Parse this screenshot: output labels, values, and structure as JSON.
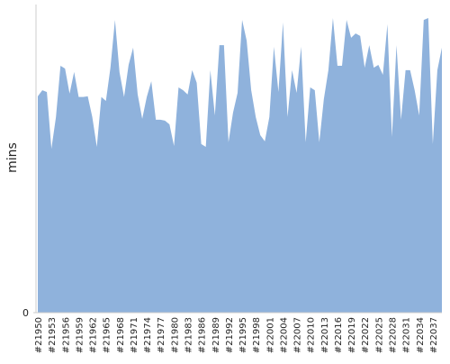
{
  "chart_data": {
    "type": "area",
    "y_label": "mins",
    "color": "#8fb2dc",
    "categories": [
      "#21950",
      null,
      null,
      "#21953",
      null,
      null,
      "#21956",
      null,
      null,
      "#21959",
      null,
      null,
      "#21962",
      null,
      null,
      "#21965",
      null,
      null,
      "#21968",
      null,
      null,
      "#21971",
      null,
      null,
      "#21974",
      null,
      null,
      "#21977",
      null,
      null,
      "#21980",
      null,
      null,
      "#21983",
      null,
      null,
      "#21986",
      null,
      null,
      "#21989",
      null,
      null,
      "#21992",
      null,
      null,
      "#21995",
      null,
      null,
      "#21998",
      null,
      null,
      "#22001",
      null,
      null,
      "#22004",
      null,
      null,
      "#22007",
      null,
      null,
      "#22010",
      null,
      null,
      "#22013",
      null,
      null,
      "#22016",
      null,
      null,
      "#22019",
      null,
      null,
      "#22022",
      null,
      null,
      "#22025",
      null,
      null,
      "#22028",
      null,
      null,
      "#22031",
      null,
      null,
      "#22034",
      null,
      null,
      "#22037",
      null,
      null
    ],
    "values": [
      70.2,
      72.2,
      71.6,
      53.2,
      63.5,
      80.1,
      79.2,
      71.1,
      78.1,
      70,
      70,
      70.2,
      63.5,
      53.8,
      70,
      68.7,
      79.5,
      95,
      78,
      70,
      80.4,
      86,
      70.8,
      62.9,
      70,
      75.1,
      62.6,
      62.6,
      62.3,
      61.1,
      54.1,
      73.1,
      72.2,
      70.8,
      78.7,
      74.6,
      54.7,
      53.8,
      78.7,
      64,
      86.8,
      86.8,
      55.3,
      64.9,
      71.3,
      95,
      88.3,
      72.2,
      63.5,
      57.6,
      55.6,
      63.5,
      86.3,
      71.6,
      94.2,
      63.5,
      78.7,
      71.3,
      86.3,
      55.3,
      73.1,
      72.2,
      55.3,
      69.3,
      78.7,
      95.6,
      80.1,
      80.1,
      95,
      89.2,
      90.6,
      89.8,
      79.5,
      86.8,
      79.5,
      80.4,
      77.2,
      93.6,
      57,
      86.8,
      62.6,
      78.7,
      78.7,
      72.2,
      64,
      95,
      95.6,
      54.7,
      78.7,
      86
    ],
    "ylim": [
      0,
      100
    ],
    "yticks": [
      0
    ]
  }
}
